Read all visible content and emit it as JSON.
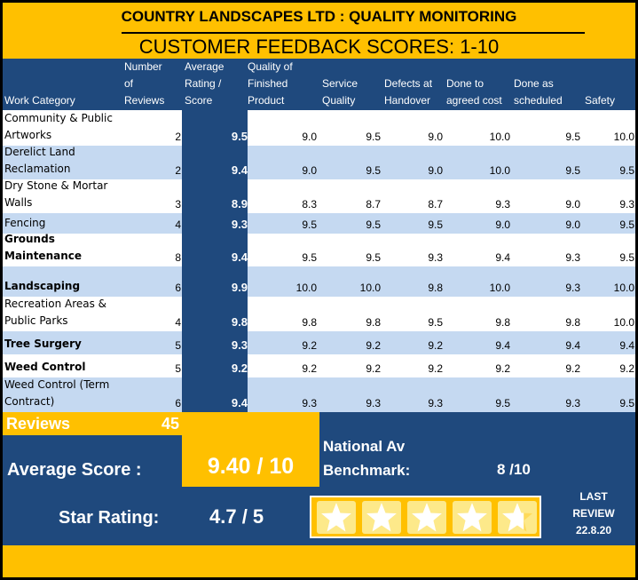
{
  "title": "COUNTRY LANDSCAPES LTD :  QUALITY MONITORING",
  "subtitle": "CUSTOMER FEEDBACK SCORES:  1-10",
  "headers": {
    "category": "Work Category",
    "reviews": "Number\nof\nReviews",
    "average": "Average\nRating /\nScore",
    "quality": "Quality of\nFinished\nProduct",
    "service": "Service\nQuality",
    "defects": "Defects at\nHandover",
    "cost": "Done to\nagreed cost",
    "schedule": "Done as\nscheduled",
    "safety": "Safety"
  },
  "rows": [
    {
      "category": "Community & Public Artworks",
      "reviews": "2",
      "average": "9.5",
      "quality": "9.0",
      "service": "9.5",
      "defects": "9.0",
      "cost": "10.0",
      "schedule": "9.5",
      "safety": "10.0"
    },
    {
      "category": "Derelict Land Reclamation",
      "reviews": "2",
      "average": "9.4",
      "quality": "9.0",
      "service": "9.5",
      "defects": "9.0",
      "cost": "10.0",
      "schedule": "9.5",
      "safety": "9.5"
    },
    {
      "category": "Dry Stone & Mortar Walls",
      "reviews": "3",
      "average": "8.9",
      "quality": "8.3",
      "service": "8.7",
      "defects": "8.7",
      "cost": "9.3",
      "schedule": "9.0",
      "safety": "9.3"
    },
    {
      "category": "Fencing",
      "reviews": "4",
      "average": "9.3",
      "quality": "9.5",
      "service": "9.5",
      "defects": "9.5",
      "cost": "9.0",
      "schedule": "9.0",
      "safety": "9.5"
    },
    {
      "category": "Grounds Maintenance",
      "reviews": "8",
      "average": "9.4",
      "quality": "9.5",
      "service": "9.5",
      "defects": "9.3",
      "cost": "9.4",
      "schedule": "9.3",
      "safety": "9.5"
    },
    {
      "category": "Landscaping",
      "reviews": "6",
      "average": "9.9",
      "quality": "10.0",
      "service": "10.0",
      "defects": "9.8",
      "cost": "10.0",
      "schedule": "9.3",
      "safety": "10.0"
    },
    {
      "category": "Recreation Areas & Public Parks",
      "reviews": "4",
      "average": "9.8",
      "quality": "9.8",
      "service": "9.8",
      "defects": "9.5",
      "cost": "9.8",
      "schedule": "9.8",
      "safety": "10.0"
    },
    {
      "category": "Tree Surgery",
      "reviews": "5",
      "average": "9.3",
      "quality": "9.2",
      "service": "9.2",
      "defects": "9.2",
      "cost": "9.4",
      "schedule": "9.4",
      "safety": "9.4"
    },
    {
      "category": "Weed Control",
      "reviews": "5",
      "average": "9.2",
      "quality": "9.2",
      "service": "9.2",
      "defects": "9.2",
      "cost": "9.2",
      "schedule": "9.2",
      "safety": "9.2"
    },
    {
      "category": "Weed Control (Term Contract)",
      "reviews": "6",
      "average": "9.4",
      "quality": "9.3",
      "service": "9.3",
      "defects": "9.3",
      "cost": "9.5",
      "schedule": "9.3",
      "safety": "9.5"
    }
  ],
  "summary": {
    "reviews_label": "Reviews",
    "reviews_total": "45",
    "average_label": "Average Score :",
    "average_value": "9.40 / 10",
    "national_line1": "National Av",
    "national_line2": "Benchmark:",
    "national_value": "8 /10",
    "star_label": "Star Rating:",
    "star_value": "4.7 / 5",
    "star_fill": 4.7,
    "last_review": "LAST\nREVIEW\n22.8.20"
  },
  "colors": {
    "gold": "#ffc000",
    "navy": "#1f497d",
    "lightblue": "#c5d9f1",
    "star": "#fde98a"
  }
}
